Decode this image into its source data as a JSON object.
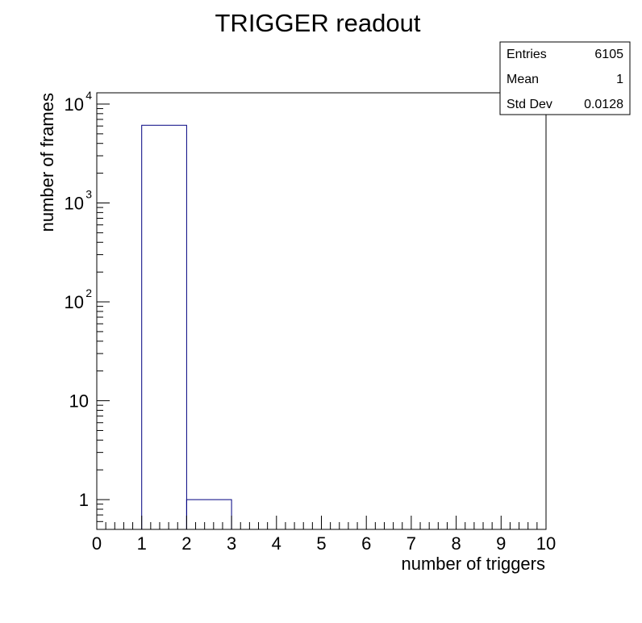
{
  "chart_data": {
    "type": "histogram",
    "title": "TRIGGER readout",
    "xlabel": "number of triggers",
    "ylabel": "number of frames",
    "xlim": [
      0,
      10
    ],
    "ylim": [
      0.5,
      13000
    ],
    "yscale": "log",
    "grid": false,
    "bins": [
      {
        "low": 0,
        "high": 1,
        "count": 0
      },
      {
        "low": 1,
        "high": 2,
        "count": 6104
      },
      {
        "low": 2,
        "high": 3,
        "count": 1
      },
      {
        "low": 3,
        "high": 4,
        "count": 0
      },
      {
        "low": 4,
        "high": 5,
        "count": 0
      },
      {
        "low": 5,
        "high": 6,
        "count": 0
      },
      {
        "low": 6,
        "high": 7,
        "count": 0
      },
      {
        "low": 7,
        "high": 8,
        "count": 0
      },
      {
        "low": 8,
        "high": 9,
        "count": 0
      },
      {
        "low": 9,
        "high": 10,
        "count": 0
      }
    ],
    "x_ticks": [
      "0",
      "1",
      "2",
      "3",
      "4",
      "5",
      "6",
      "7",
      "8",
      "9",
      "10"
    ],
    "y_ticks": [
      {
        "value": 1,
        "label": "1",
        "sup": ""
      },
      {
        "value": 10,
        "label": "10",
        "sup": ""
      },
      {
        "value": 100,
        "label": "10",
        "sup": "2"
      },
      {
        "value": 1000,
        "label": "10",
        "sup": "3"
      },
      {
        "value": 10000,
        "label": "10",
        "sup": "4"
      }
    ],
    "line_color": "#000080",
    "stats": [
      {
        "label": "Entries",
        "value": "6105"
      },
      {
        "label": "Mean",
        "value": "1"
      },
      {
        "label": "Std Dev",
        "value": "0.0128"
      }
    ]
  }
}
